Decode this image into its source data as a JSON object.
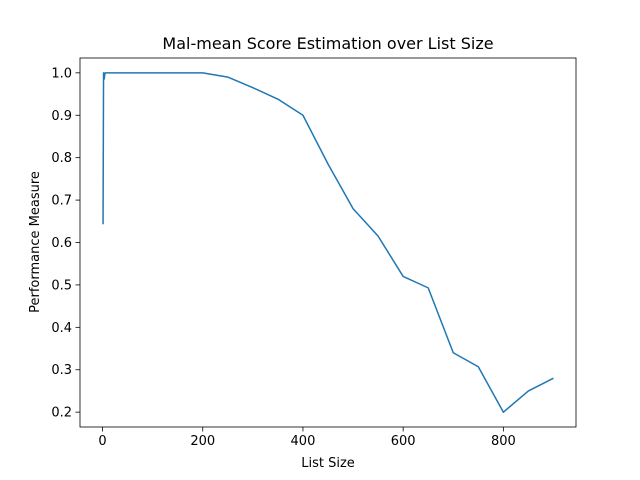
{
  "chart_data": {
    "type": "line",
    "title": "Mal-mean Score Estimation over List Size",
    "xlabel": "List Size",
    "ylabel": "Performance Measure",
    "xlim": [
      -45,
      945
    ],
    "ylim": [
      0.165,
      1.035
    ],
    "xticks": [
      0,
      200,
      400,
      600,
      800
    ],
    "yticks": [
      0.2,
      0.3,
      0.4,
      0.5,
      0.6,
      0.7,
      0.8,
      0.9,
      1.0
    ],
    "xtick_labels": [
      "0",
      "200",
      "400",
      "600",
      "800"
    ],
    "ytick_labels": [
      "0.2",
      "0.3",
      "0.4",
      "0.5",
      "0.6",
      "0.7",
      "0.8",
      "0.9",
      "1.0"
    ],
    "grid": false,
    "legend": false,
    "series": [
      {
        "color": "#1f77b4",
        "x": [
          1,
          2,
          3,
          5,
          10,
          50,
          100,
          150,
          200,
          250,
          300,
          350,
          400,
          450,
          500,
          550,
          600,
          650,
          700,
          750,
          800,
          850,
          900
        ],
        "y": [
          0.643,
          1.0,
          0.985,
          1.0,
          1.0,
          1.0,
          1.0,
          1.0,
          1.0,
          0.99,
          0.965,
          0.938,
          0.9,
          0.785,
          0.68,
          0.615,
          0.52,
          0.493,
          0.34,
          0.307,
          0.2,
          0.25,
          0.28
        ]
      }
    ]
  }
}
